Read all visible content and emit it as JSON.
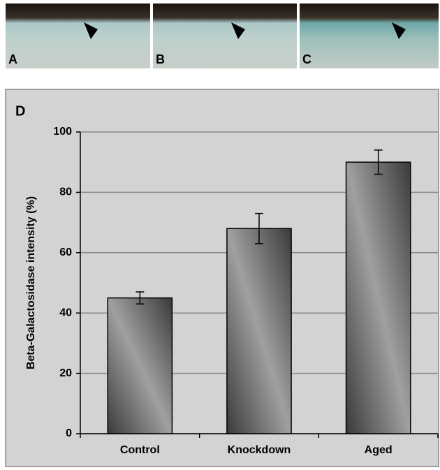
{
  "panel_labels": [
    "A",
    "B",
    "C"
  ],
  "chart_data": {
    "type": "bar",
    "panel_label": "D",
    "ylabel": "Beta-Galactosidase intensity (%)",
    "categories": [
      "Control",
      "Knockdown",
      "Aged"
    ],
    "values": [
      45,
      68,
      90
    ],
    "errors": [
      2,
      5,
      4
    ],
    "color": "#a0a0a0",
    "ylim": [
      0,
      100
    ],
    "yticks": [
      0,
      20,
      40,
      60,
      80,
      100
    ],
    "grid": true
  }
}
